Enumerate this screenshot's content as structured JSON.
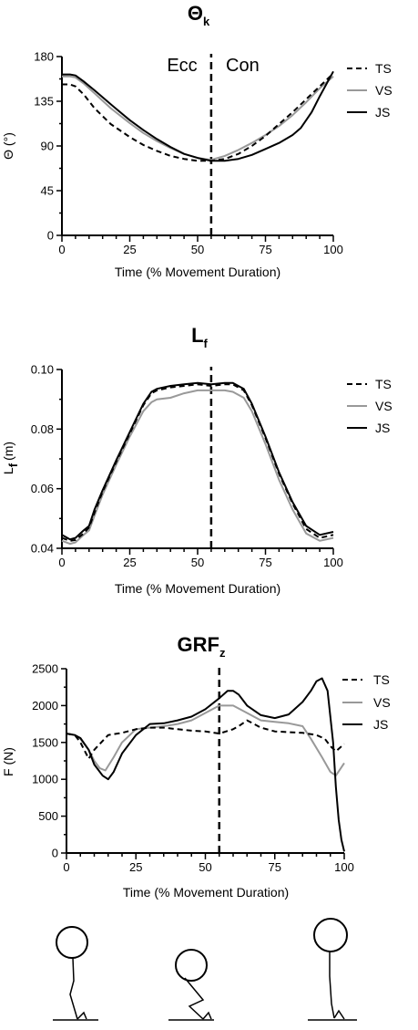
{
  "chart_data": [
    {
      "type": "line",
      "title": "Θ",
      "title_sub": "k",
      "xlabel": "Time (% Movement Duration)",
      "ylabel": "Θ (°)",
      "xlim": [
        0,
        100
      ],
      "ylim": [
        0,
        180
      ],
      "xticks": [
        "0",
        "25",
        "50",
        "75",
        "100"
      ],
      "yticks": [
        "0",
        "45",
        "90",
        "135",
        "180"
      ],
      "vline_x": 55,
      "annotations": [
        "Ecc",
        "Con"
      ],
      "legend_position": "right",
      "series": [
        {
          "name": "TS",
          "color": "#000000",
          "dash": "dashed",
          "x": [
            0,
            3,
            5,
            8,
            12,
            18,
            25,
            30,
            35,
            40,
            45,
            50,
            55,
            60,
            65,
            70,
            75,
            80,
            85,
            90,
            95,
            100
          ],
          "y": [
            152,
            152,
            150,
            142,
            128,
            112,
            99,
            91,
            85,
            80,
            77,
            75,
            75,
            77,
            82,
            90,
            100,
            112,
            124,
            137,
            150,
            163
          ]
        },
        {
          "name": "VS",
          "color": "#999999",
          "dash": "solid",
          "x": [
            0,
            3,
            5,
            8,
            12,
            18,
            25,
            30,
            35,
            40,
            45,
            50,
            55,
            60,
            65,
            70,
            75,
            80,
            85,
            90,
            95,
            100
          ],
          "y": [
            160,
            160,
            159,
            153,
            143,
            128,
            113,
            103,
            95,
            88,
            82,
            78,
            76,
            80,
            86,
            93,
            101,
            110,
            121,
            134,
            148,
            160
          ]
        },
        {
          "name": "JS",
          "color": "#000000",
          "dash": "solid",
          "x": [
            0,
            3,
            5,
            8,
            12,
            18,
            25,
            30,
            35,
            40,
            45,
            50,
            55,
            60,
            65,
            70,
            75,
            80,
            85,
            88,
            92,
            95,
            100
          ],
          "y": [
            162,
            162,
            161,
            155,
            146,
            132,
            116,
            106,
            97,
            89,
            82,
            78,
            75,
            75,
            77,
            81,
            87,
            93,
            101,
            108,
            124,
            140,
            165
          ]
        }
      ]
    },
    {
      "type": "line",
      "title": "L",
      "title_sub": "f",
      "xlabel": "Time (% Movement Duration)",
      "ylabel": "L",
      "ylabel_sub": "f",
      "ylabel_unit": "(m)",
      "xlim": [
        0,
        100
      ],
      "ylim": [
        0.04,
        0.1
      ],
      "xticks": [
        "0",
        "25",
        "50",
        "75",
        "100"
      ],
      "yticks": [
        "0.04",
        "0.06",
        "0.08",
        "0.10"
      ],
      "vline_x": 55,
      "legend_position": "right",
      "series": [
        {
          "name": "TS",
          "color": "#000000",
          "dash": "dashed",
          "x": [
            0,
            3,
            5,
            8,
            10,
            12,
            15,
            20,
            25,
            30,
            33,
            35,
            40,
            45,
            50,
            55,
            60,
            63,
            67,
            70,
            75,
            80,
            85,
            90,
            95,
            100
          ],
          "y": [
            0.0435,
            0.0425,
            0.0428,
            0.045,
            0.047,
            0.052,
            0.059,
            0.069,
            0.0785,
            0.088,
            0.092,
            0.093,
            0.094,
            0.0945,
            0.095,
            0.0945,
            0.095,
            0.095,
            0.093,
            0.088,
            0.077,
            0.065,
            0.055,
            0.0465,
            0.0435,
            0.0445
          ]
        },
        {
          "name": "VS",
          "color": "#999999",
          "dash": "solid",
          "x": [
            0,
            3,
            5,
            8,
            10,
            12,
            15,
            20,
            25,
            30,
            33,
            35,
            40,
            45,
            50,
            55,
            60,
            63,
            67,
            70,
            75,
            80,
            85,
            90,
            95,
            100
          ],
          "y": [
            0.0425,
            0.0415,
            0.042,
            0.0445,
            0.046,
            0.051,
            0.058,
            0.068,
            0.0775,
            0.086,
            0.089,
            0.09,
            0.0905,
            0.092,
            0.093,
            0.093,
            0.093,
            0.0925,
            0.0905,
            0.086,
            0.075,
            0.063,
            0.053,
            0.045,
            0.0425,
            0.0435
          ]
        },
        {
          "name": "JS",
          "color": "#000000",
          "dash": "solid",
          "x": [
            0,
            3,
            5,
            8,
            10,
            12,
            15,
            20,
            25,
            30,
            33,
            35,
            40,
            45,
            50,
            55,
            60,
            63,
            67,
            70,
            75,
            80,
            85,
            90,
            95,
            100
          ],
          "y": [
            0.0445,
            0.043,
            0.0435,
            0.046,
            0.0475,
            0.053,
            0.0595,
            0.0695,
            0.079,
            0.0885,
            0.0925,
            0.0935,
            0.0945,
            0.095,
            0.0955,
            0.095,
            0.0955,
            0.0955,
            0.0935,
            0.0885,
            0.0775,
            0.0655,
            0.0555,
            0.0475,
            0.0445,
            0.0455
          ]
        }
      ]
    },
    {
      "type": "line",
      "title": "GRF",
      "title_sub": "z",
      "xlabel": "Time (% Movement Duration)",
      "ylabel": "F (N)",
      "xlim": [
        0,
        100
      ],
      "ylim": [
        0,
        2500
      ],
      "xticks": [
        "0",
        "25",
        "50",
        "75",
        "100"
      ],
      "yticks": [
        "0",
        "500",
        "1000",
        "1500",
        "2000",
        "2500"
      ],
      "vline_x": 55,
      "legend_position": "top-right",
      "series": [
        {
          "name": "TS",
          "color": "#000000",
          "dash": "dashed",
          "x": [
            0,
            3,
            5,
            8,
            10,
            15,
            20,
            25,
            30,
            35,
            40,
            45,
            50,
            55,
            60,
            62,
            65,
            70,
            75,
            80,
            85,
            90,
            93,
            95,
            97,
            100
          ],
          "y": [
            1620,
            1600,
            1500,
            1280,
            1400,
            1600,
            1630,
            1680,
            1700,
            1700,
            1680,
            1660,
            1650,
            1620,
            1680,
            1720,
            1800,
            1700,
            1650,
            1640,
            1630,
            1600,
            1550,
            1450,
            1380,
            1480
          ]
        },
        {
          "name": "VS",
          "color": "#999999",
          "dash": "solid",
          "x": [
            0,
            3,
            5,
            8,
            10,
            12,
            14,
            17,
            20,
            25,
            30,
            35,
            40,
            45,
            50,
            55,
            60,
            65,
            70,
            75,
            80,
            85,
            88,
            92,
            95,
            97,
            100
          ],
          "y": [
            1620,
            1600,
            1550,
            1400,
            1250,
            1150,
            1120,
            1300,
            1500,
            1680,
            1700,
            1720,
            1750,
            1800,
            1900,
            2000,
            2000,
            1900,
            1800,
            1780,
            1760,
            1720,
            1550,
            1300,
            1100,
            1050,
            1220
          ]
        },
        {
          "name": "JS",
          "color": "#000000",
          "dash": "solid",
          "x": [
            0,
            3,
            5,
            8,
            10,
            13,
            15,
            17,
            20,
            25,
            30,
            35,
            40,
            45,
            50,
            55,
            58,
            60,
            62,
            65,
            70,
            75,
            80,
            85,
            88,
            90,
            92,
            94,
            96,
            97,
            98,
            99,
            100
          ],
          "y": [
            1620,
            1600,
            1560,
            1400,
            1200,
            1050,
            1000,
            1100,
            1350,
            1600,
            1750,
            1760,
            1800,
            1850,
            1950,
            2100,
            2200,
            2200,
            2150,
            2000,
            1870,
            1830,
            1880,
            2050,
            2200,
            2330,
            2370,
            2200,
            1500,
            900,
            450,
            180,
            20
          ]
        }
      ]
    }
  ]
}
